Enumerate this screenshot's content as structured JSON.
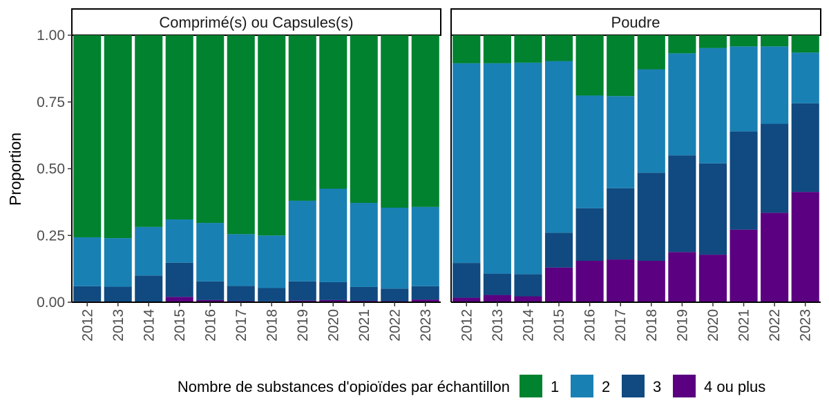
{
  "chart_data": {
    "type": "bar",
    "stacked": true,
    "ylabel": "Proportion",
    "ylim": [
      0,
      1
    ],
    "yticks": [
      "0.00",
      "0.25",
      "0.50",
      "0.75",
      "1.00"
    ],
    "categories": [
      "2012",
      "2013",
      "2014",
      "2015",
      "2016",
      "2017",
      "2018",
      "2019",
      "2020",
      "2021",
      "2022",
      "2023"
    ],
    "legend": {
      "title": "Nombre de substances d'opioïdes par échantillon",
      "position": "bottom",
      "entries": [
        {
          "label": "1",
          "color": "#00822F"
        },
        {
          "label": "2",
          "color": "#1980B4"
        },
        {
          "label": "3",
          "color": "#104A80"
        },
        {
          "label": "4 ou plus",
          "color": "#5A0080"
        }
      ]
    },
    "panels": [
      {
        "title": "Comprimé(s) ou Capsules(s)",
        "series": [
          {
            "name": "4 ou plus",
            "values": [
              0.003,
              0.002,
              0.002,
              0.02,
              0.008,
              0.004,
              0.003,
              0.006,
              0.008,
              0.005,
              0.004,
              0.01
            ]
          },
          {
            "name": "3",
            "values": [
              0.057,
              0.056,
              0.098,
              0.128,
              0.07,
              0.057,
              0.05,
              0.072,
              0.067,
              0.052,
              0.047,
              0.05
            ]
          },
          {
            "name": "2",
            "values": [
              0.183,
              0.182,
              0.182,
              0.162,
              0.219,
              0.194,
              0.197,
              0.302,
              0.35,
              0.315,
              0.303,
              0.297
            ]
          },
          {
            "name": "1",
            "values": [
              0.757,
              0.76,
              0.718,
              0.69,
              0.703,
              0.745,
              0.75,
              0.62,
              0.575,
              0.628,
              0.646,
              0.643
            ]
          }
        ]
      },
      {
        "title": "Poudre",
        "series": [
          {
            "name": "4 ou plus",
            "values": [
              0.017,
              0.027,
              0.022,
              0.13,
              0.155,
              0.16,
              0.155,
              0.188,
              0.178,
              0.272,
              0.335,
              0.413
            ]
          },
          {
            "name": "3",
            "values": [
              0.13,
              0.08,
              0.083,
              0.13,
              0.197,
              0.267,
              0.33,
              0.362,
              0.342,
              0.368,
              0.333,
              0.332
            ]
          },
          {
            "name": "2",
            "values": [
              0.748,
              0.788,
              0.792,
              0.643,
              0.422,
              0.345,
              0.387,
              0.382,
              0.432,
              0.318,
              0.29,
              0.19
            ]
          },
          {
            "name": "1",
            "values": [
              0.105,
              0.105,
              0.103,
              0.097,
              0.226,
              0.228,
              0.128,
              0.068,
              0.048,
              0.042,
              0.042,
              0.065
            ]
          }
        ]
      }
    ]
  }
}
